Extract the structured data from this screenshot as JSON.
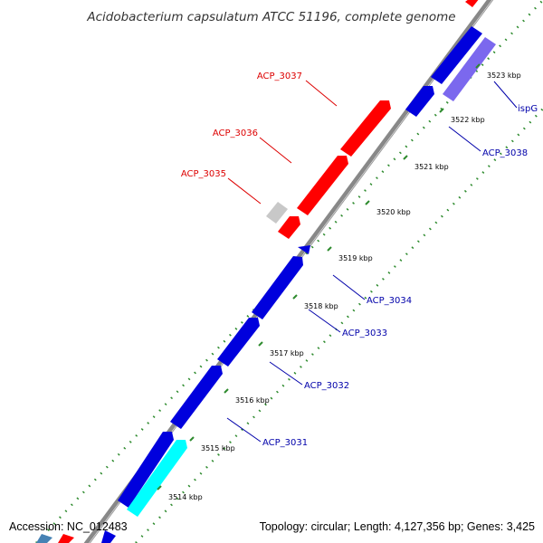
{
  "title": "Acidobacterium capsulatum ATCC 51196, complete genome",
  "footer": {
    "accession": "Accession: NC_012483",
    "summary": "Topology: circular; Length: 4,127,356 bp; Genes: 3,425"
  },
  "colors": {
    "forward_gene": "#ff0000",
    "reverse_gene": "#0000dd",
    "cyan_gene": "#00ffff",
    "purple_gene": "#7b68ee",
    "grey_gene": "#c8c8c8",
    "backbone": "#888888",
    "scale_ticks": "#2e8b2e",
    "forward_label": "#dd0000",
    "reverse_label": "#0000aa"
  },
  "scale_ticks": [
    {
      "label": "3514 kbp"
    },
    {
      "label": "3515 kbp"
    },
    {
      "label": "3516 kbp"
    },
    {
      "label": "3517 kbp"
    },
    {
      "label": "3518 kbp"
    },
    {
      "label": "3519 kbp"
    },
    {
      "label": "3520 kbp"
    },
    {
      "label": "3521 kbp"
    },
    {
      "label": "3522 kbp"
    },
    {
      "label": "3523 kbp"
    }
  ],
  "gene_labels": [
    {
      "label": "ACP_3037",
      "strand": "forward"
    },
    {
      "label": "ACP_3036",
      "strand": "forward"
    },
    {
      "label": "ACP_3035",
      "strand": "forward"
    },
    {
      "label": "ispG",
      "strand": "reverse"
    },
    {
      "label": "ACP_3038",
      "strand": "reverse"
    },
    {
      "label": "ACP_3034",
      "strand": "reverse"
    },
    {
      "label": "ACP_3033",
      "strand": "reverse"
    },
    {
      "label": "ACP_3032",
      "strand": "reverse"
    },
    {
      "label": "ACP_3031",
      "strand": "reverse"
    }
  ]
}
